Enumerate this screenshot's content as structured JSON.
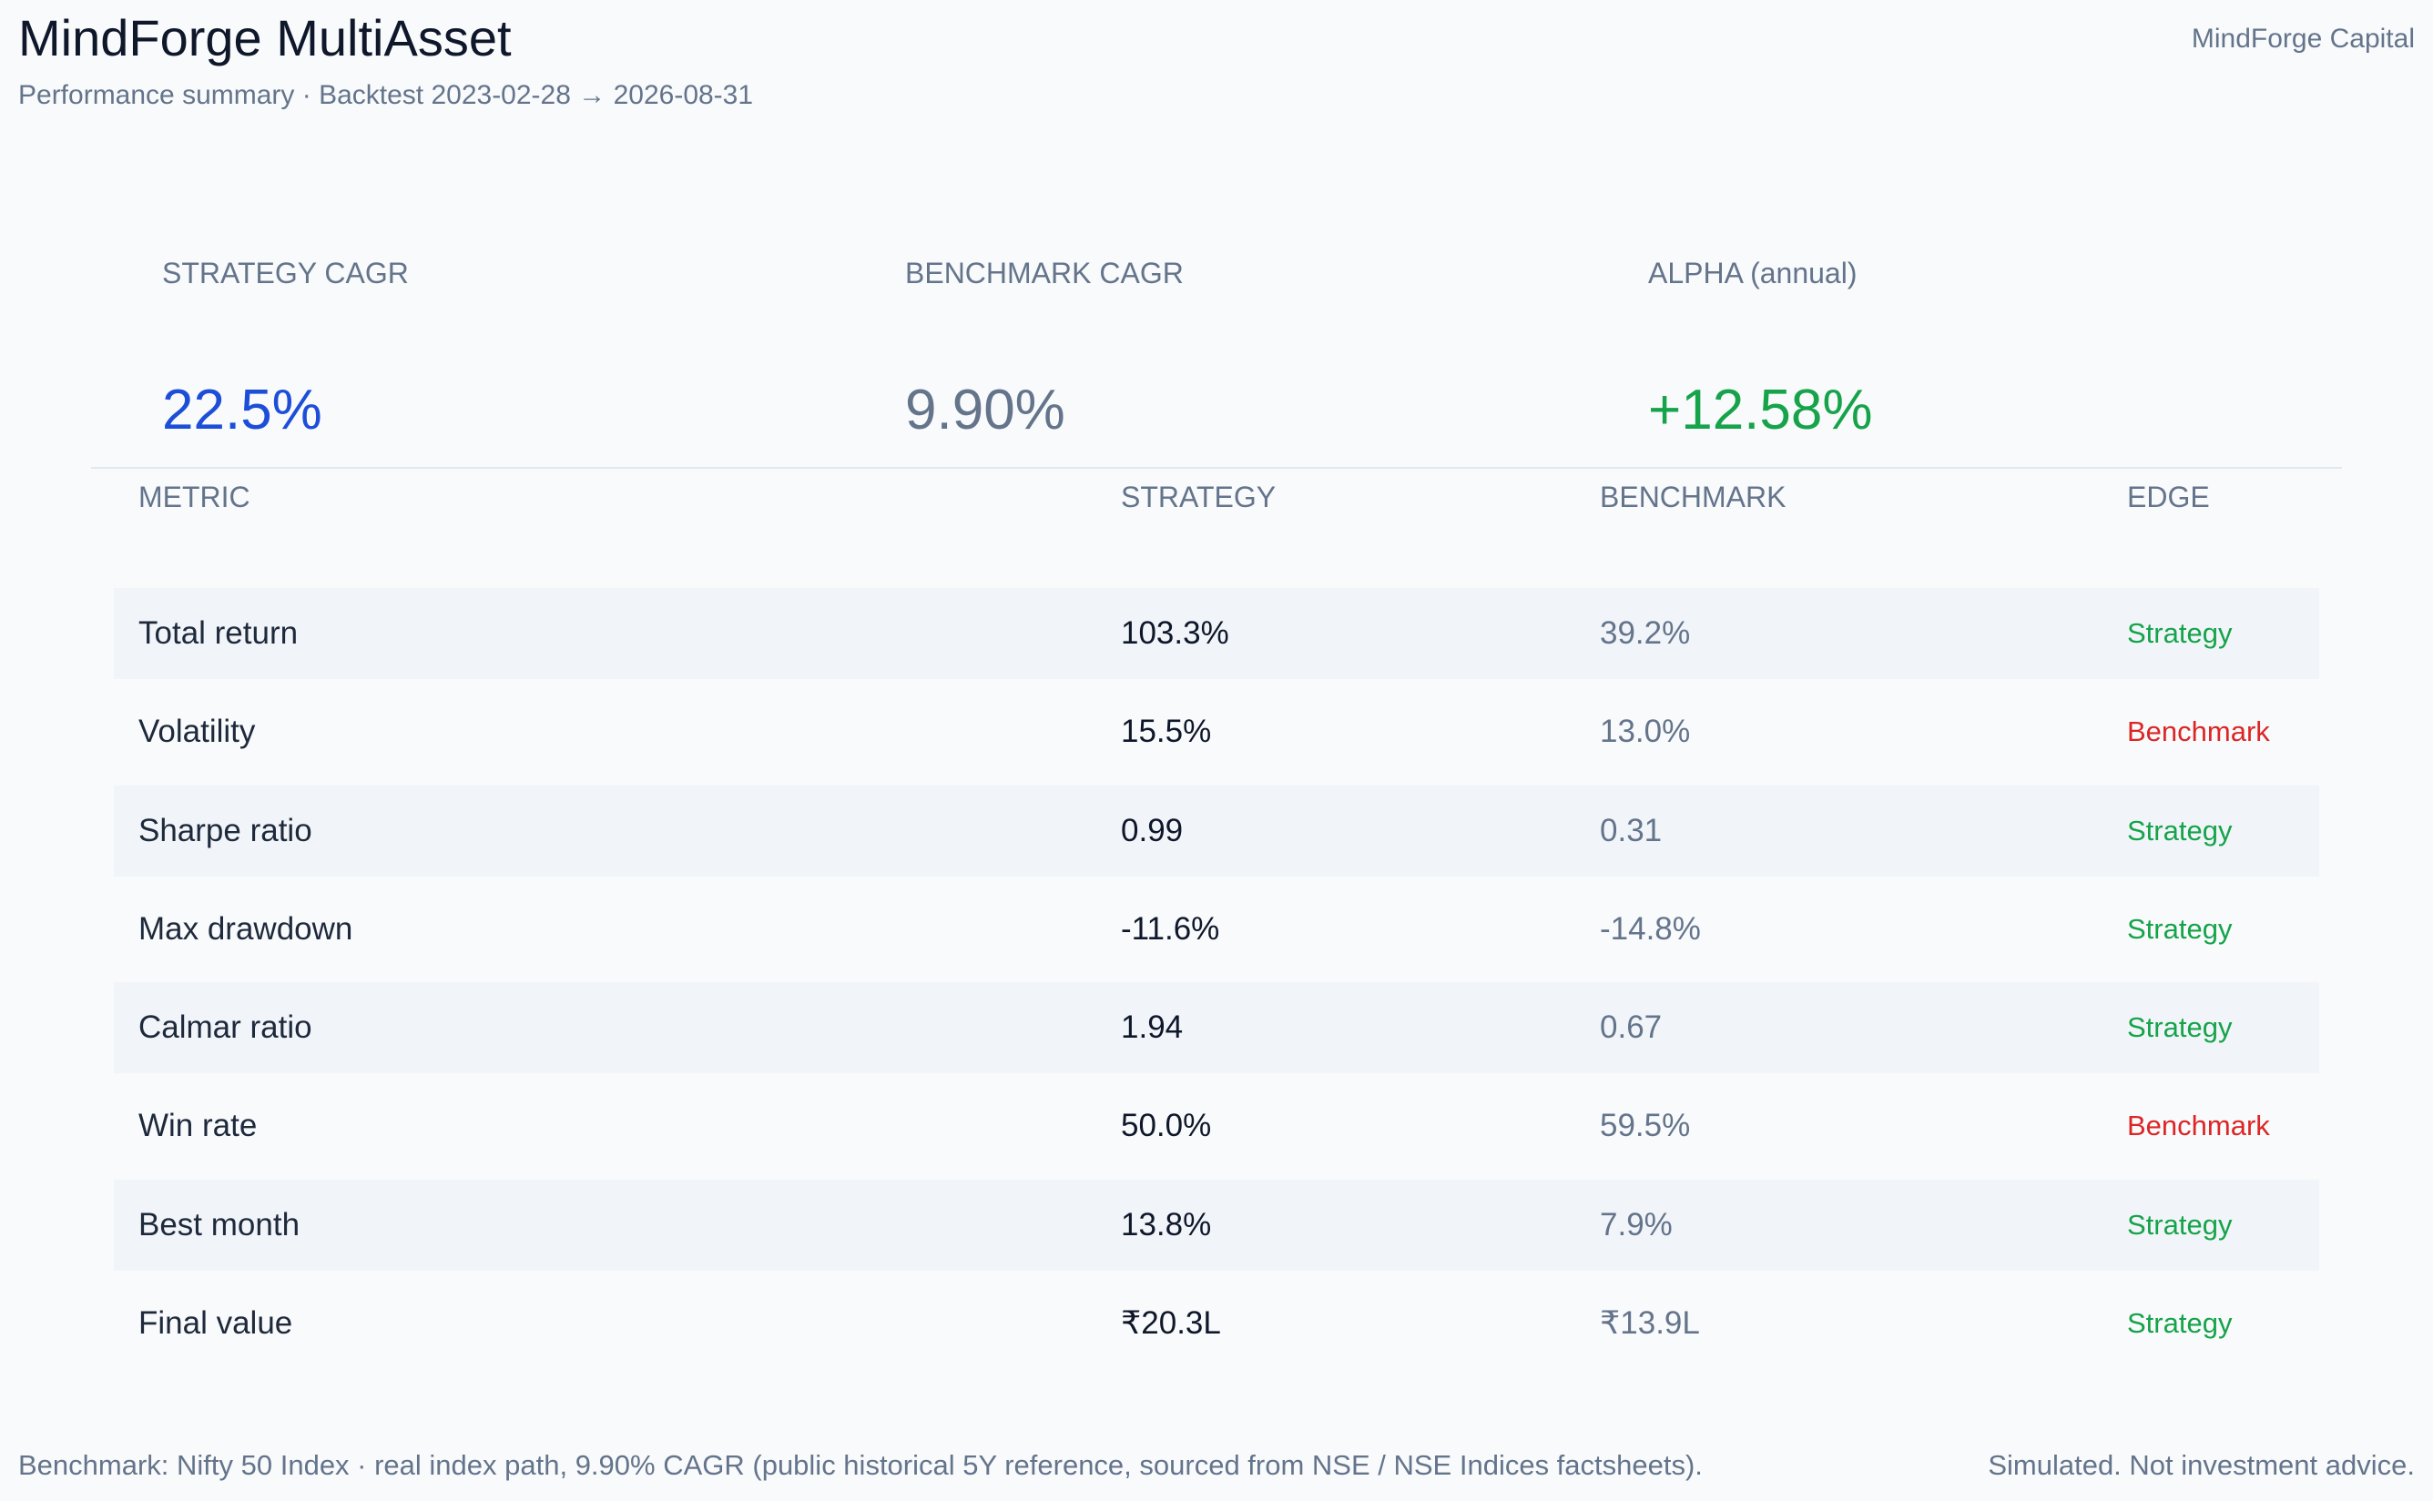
{
  "header": {
    "title": "MindForge MultiAsset",
    "subtitle": "Performance summary  ·  Backtest 2023-02-28 → 2026-08-31",
    "brand": "MindForge Capital"
  },
  "kpis": {
    "strategy": {
      "label": "STRATEGY CAGR",
      "value": "22.5%",
      "color": "#1d4ed8"
    },
    "benchmark": {
      "label": "BENCHMARK CAGR",
      "value": "9.90%",
      "color": "#64748b"
    },
    "alpha": {
      "label": "ALPHA (annual)",
      "value": "+12.58%",
      "color": "#16a34a"
    }
  },
  "table": {
    "headers": {
      "metric": "METRIC",
      "strategy": "STRATEGY",
      "benchmark": "BENCHMARK",
      "edge": "EDGE"
    },
    "rows": [
      {
        "metric": "Total return",
        "strategy": "103.3%",
        "benchmark": "39.2%",
        "edge": "Strategy"
      },
      {
        "metric": "Volatility",
        "strategy": "15.5%",
        "benchmark": "13.0%",
        "edge": "Benchmark"
      },
      {
        "metric": "Sharpe ratio",
        "strategy": "0.99",
        "benchmark": "0.31",
        "edge": "Strategy"
      },
      {
        "metric": "Max drawdown",
        "strategy": "-11.6%",
        "benchmark": "-14.8%",
        "edge": "Strategy"
      },
      {
        "metric": "Calmar ratio",
        "strategy": "1.94",
        "benchmark": "0.67",
        "edge": "Strategy"
      },
      {
        "metric": "Win rate",
        "strategy": "50.0%",
        "benchmark": "59.5%",
        "edge": "Benchmark"
      },
      {
        "metric": "Best month",
        "strategy": "13.8%",
        "benchmark": "7.9%",
        "edge": "Strategy"
      },
      {
        "metric": "Final value",
        "strategy": "₹20.3L",
        "benchmark": "₹13.9L",
        "edge": "Strategy"
      }
    ]
  },
  "footer": {
    "note": "Benchmark: Nifty 50 Index  ·  real index path, 9.90% CAGR (public historical 5Y reference, sourced from NSE / NSE Indices factsheets).",
    "disclaimer": "Simulated. Not investment advice."
  },
  "colors": {
    "strategy_edge": "#16a34a",
    "benchmark_edge": "#dc2626"
  }
}
